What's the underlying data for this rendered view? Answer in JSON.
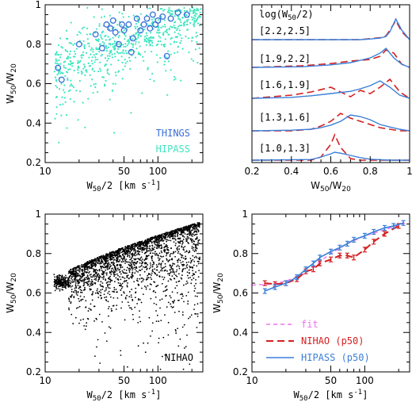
{
  "colors": {
    "things": "#3a6fd8",
    "hipass": "#3fe6c0",
    "nihao_pts": "#000000",
    "nihao_line": "#d42020",
    "hipass_line": "#3a7fd8",
    "fit": "#f070f0"
  },
  "chart_data": [
    {
      "panel": "top-left",
      "type": "scatter",
      "xlabel": "W50/2 [km s-1]",
      "ylabel": "W50/W20",
      "xscale": "log",
      "xlim": [
        10,
        250
      ],
      "ylim": [
        0.2,
        1.0
      ],
      "xticks": [
        10,
        50,
        100
      ],
      "yticks": [
        0.2,
        0.4,
        0.6,
        0.8,
        1.0
      ],
      "legend": [
        "THINGS",
        "HIPASS"
      ],
      "legend_position": "bottom-right",
      "series": [
        {
          "name": "THINGS",
          "marker": "open-circle",
          "x": [
            13,
            14,
            20,
            28,
            32,
            35,
            38,
            40,
            42,
            45,
            48,
            50,
            55,
            58,
            60,
            65,
            70,
            75,
            80,
            85,
            90,
            95,
            100,
            110,
            120,
            130,
            150,
            180
          ],
          "y": [
            0.68,
            0.62,
            0.8,
            0.85,
            0.78,
            0.9,
            0.88,
            0.92,
            0.86,
            0.8,
            0.9,
            0.87,
            0.9,
            0.76,
            0.83,
            0.93,
            0.87,
            0.9,
            0.93,
            0.88,
            0.95,
            0.9,
            0.92,
            0.94,
            0.74,
            0.93,
            0.96,
            0.95
          ]
        },
        {
          "name": "HIPASS",
          "marker": "dot",
          "note": "dense cloud approximating the cyan points",
          "n_points": 700
        }
      ]
    },
    {
      "panel": "top-right",
      "type": "line",
      "xlabel": "W50/W20",
      "xlim": [
        0.2,
        1.0
      ],
      "xticks": [
        0.2,
        0.4,
        0.6,
        0.8,
        1.0
      ],
      "header": "log(W50/2)",
      "bins": [
        {
          "label": "[2.2,2.5]",
          "x": [
            0.2,
            0.75,
            0.8,
            0.85,
            0.88,
            0.9,
            0.93,
            0.96,
            1.0
          ],
          "hipass": [
            0,
            0,
            0.02,
            0.05,
            0.1,
            0.25,
            0.65,
            0.3,
            0
          ],
          "nihao": [
            0,
            0,
            0.03,
            0.06,
            0.12,
            0.3,
            0.6,
            0.25,
            0
          ]
        },
        {
          "label": "[1.9,2.2]",
          "x": [
            0.2,
            0.45,
            0.6,
            0.7,
            0.8,
            0.85,
            0.88,
            0.92,
            0.96,
            1.0
          ],
          "hipass": [
            0,
            0.02,
            0.08,
            0.15,
            0.3,
            0.45,
            0.6,
            0.3,
            0.1,
            0
          ],
          "nihao": [
            0,
            0.05,
            0.12,
            0.2,
            0.25,
            0.35,
            0.55,
            0.45,
            0.1,
            0
          ]
        },
        {
          "label": "[1.6,1.9]",
          "x": [
            0.2,
            0.4,
            0.5,
            0.6,
            0.7,
            0.75,
            0.8,
            0.85,
            0.9,
            0.95,
            1.0
          ],
          "hipass": [
            0,
            0.03,
            0.08,
            0.15,
            0.22,
            0.3,
            0.4,
            0.55,
            0.35,
            0.1,
            0
          ],
          "nihao": [
            0,
            0.1,
            0.2,
            0.35,
            0.05,
            0.25,
            0.15,
            0.35,
            0.6,
            0.2,
            0
          ]
        },
        {
          "label": "[1.3,1.6]",
          "x": [
            0.2,
            0.4,
            0.5,
            0.55,
            0.6,
            0.65,
            0.7,
            0.75,
            0.8,
            0.85,
            0.9,
            0.95,
            1.0
          ],
          "hipass": [
            0,
            0.02,
            0.05,
            0.1,
            0.18,
            0.3,
            0.5,
            0.45,
            0.35,
            0.2,
            0.12,
            0.05,
            0
          ],
          "nihao": [
            0,
            0,
            0.05,
            0.15,
            0.3,
            0.55,
            0.4,
            0.3,
            0.2,
            0.1,
            0.05,
            0,
            0
          ]
        },
        {
          "label": "[1.0,1.3]",
          "x": [
            0.2,
            0.5,
            0.55,
            0.6,
            0.62,
            0.65,
            0.7,
            0.75,
            0.8,
            0.9,
            1.0
          ],
          "hipass": [
            0,
            0.02,
            0.1,
            0.2,
            0.25,
            0.22,
            0.15,
            0.08,
            0.03,
            0,
            0
          ],
          "nihao": [
            0,
            0,
            0.1,
            0.5,
            0.8,
            0.4,
            0.05,
            0,
            0,
            0,
            0
          ]
        }
      ]
    },
    {
      "panel": "bottom-left",
      "type": "scatter",
      "xlabel": "W50/2 [km s-1]",
      "ylabel": "W50/W20",
      "xscale": "log",
      "xlim": [
        10,
        250
      ],
      "ylim": [
        0.2,
        1.0
      ],
      "xticks": [
        10,
        50,
        100
      ],
      "yticks": [
        0.2,
        0.4,
        0.6,
        0.8,
        1.0
      ],
      "annotation": "NIHAO",
      "series": [
        {
          "name": "NIHAO",
          "marker": "dot",
          "note": "dense cloud approximating the black points",
          "n_points": 2600
        }
      ]
    },
    {
      "panel": "bottom-right",
      "type": "line",
      "xlabel": "W50/2 [km s-1]",
      "ylabel": "W50/W20",
      "xscale": "log",
      "xlim": [
        10,
        250
      ],
      "ylim": [
        0.2,
        1.0
      ],
      "xticks": [
        10,
        50,
        100
      ],
      "yticks": [
        0.2,
        0.4,
        0.6,
        0.8,
        1.0
      ],
      "legend": [
        "fit",
        "NIHAO (p50)",
        "HIPASS (p50)"
      ],
      "legend_position": "bottom-right",
      "series": [
        {
          "name": "fit",
          "style": "dashed",
          "x": [
            10,
            15,
            20,
            30,
            40,
            50,
            70,
            100,
            150,
            200,
            230
          ],
          "y": [
            0.64,
            0.645,
            0.66,
            0.7,
            0.76,
            0.8,
            0.85,
            0.89,
            0.92,
            0.945,
            0.955
          ]
        },
        {
          "name": "NIHAO (p50)",
          "style": "long-dash",
          "x": [
            13,
            16,
            20,
            25,
            30,
            35,
            40,
            50,
            60,
            70,
            80,
            100,
            120,
            150,
            200
          ],
          "y": [
            0.65,
            0.645,
            0.65,
            0.67,
            0.71,
            0.72,
            0.75,
            0.77,
            0.79,
            0.79,
            0.78,
            0.82,
            0.86,
            0.9,
            0.94
          ]
        },
        {
          "name": "HIPASS (p50)",
          "style": "solid",
          "x": [
            13,
            16,
            20,
            25,
            30,
            35,
            40,
            50,
            60,
            70,
            80,
            100,
            120,
            150,
            180,
            220
          ],
          "y": [
            0.61,
            0.63,
            0.65,
            0.68,
            0.72,
            0.75,
            0.78,
            0.81,
            0.83,
            0.85,
            0.87,
            0.89,
            0.91,
            0.93,
            0.94,
            0.955
          ]
        }
      ]
    }
  ]
}
